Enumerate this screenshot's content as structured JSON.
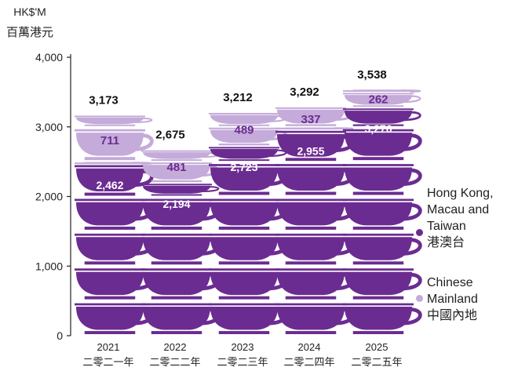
{
  "chart_data": {
    "type": "bar",
    "unit_label": "HK$'M",
    "unit_label_zh": "百萬港元",
    "categories": [
      "2021",
      "2022",
      "2023",
      "2024",
      "2025"
    ],
    "categories_zh": [
      "二零二一年",
      "二零二二年",
      "二零二三年",
      "二零二四年",
      "二零二五年"
    ],
    "ylim": [
      0,
      4000
    ],
    "yticks": [
      "0",
      "1,000",
      "2,000",
      "3,000",
      "4,000"
    ],
    "stacked": true,
    "series": [
      {
        "name": "Hong Kong, Macau and Taiwan",
        "name_zh": "港澳台",
        "color": "#6b2c91",
        "values": [
          2462,
          2194,
          2723,
          2955,
          3276
        ]
      },
      {
        "name": "Chinese Mainland",
        "name_zh": "中國內地",
        "color": "#c4abd9",
        "values": [
          711,
          481,
          489,
          337,
          262
        ]
      }
    ],
    "totals": [
      3173,
      2675,
      3212,
      3292,
      3538
    ],
    "value_labels_hk": [
      "2,462",
      "2,194",
      "2,723",
      "2,955",
      "3,276"
    ],
    "value_labels_cn": [
      "711",
      "481",
      "489",
      "337",
      "262"
    ],
    "total_labels": [
      "3,173",
      "2,675",
      "3,212",
      "3,292",
      "3,538"
    ],
    "legend_position": "right"
  },
  "legend": {
    "hk": "Hong Kong,\nMacau and\nTaiwan\n港澳台",
    "cn": "Chinese\nMainland\n中國內地"
  }
}
